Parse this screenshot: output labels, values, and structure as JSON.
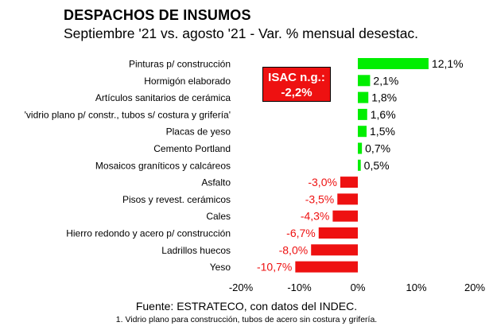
{
  "header": {
    "title": "DESPACHOS DE INSUMOS",
    "subtitle": "Septiembre '21 vs. agosto '21 - Var. % mensual desestac."
  },
  "callout": {
    "line1": "ISAC n.g.:",
    "line2": "-2,2%"
  },
  "footer": {
    "source": "Fuente: ESTRATECO, con datos del INDEC.",
    "note": "1. Vidrio plano para construcción, tubos de acero sin costura y grifería."
  },
  "colors": {
    "positive": "#00ee00",
    "negative": "#ee1111",
    "callout_bg": "#ee1111"
  },
  "chart_data": {
    "type": "bar",
    "orientation": "horizontal",
    "categories": [
      "Pinturas p/ construcción",
      "Hormigón elaborado",
      "Artículos sanitarios de cerámica",
      "'vidrio plano p/ constr., tubos s/ costura y grifería'",
      "Placas de yeso",
      "Cemento Portland",
      "Mosaicos graníticos y calcáreos",
      "Asfalto",
      "Pisos y revest. cerámicos",
      "Cales",
      "Hierro redondo y acero p/ construcción",
      "Ladrillos huecos",
      "Yeso"
    ],
    "values": [
      12.1,
      2.1,
      1.8,
      1.6,
      1.5,
      0.7,
      0.5,
      -3.0,
      -3.5,
      -4.3,
      -6.7,
      -8.0,
      -10.7
    ],
    "value_labels": [
      "12,1%",
      "2,1%",
      "1,8%",
      "1,6%",
      "1,5%",
      "0,7%",
      "0,5%",
      "-3,0%",
      "-3,5%",
      "-4,3%",
      "-6,7%",
      "-8,0%",
      "-10,7%"
    ],
    "xlim": [
      -20,
      20
    ],
    "xticks": [
      -20,
      -10,
      0,
      10,
      20
    ],
    "xtick_labels": [
      "-20%",
      "-10%",
      "0%",
      "10%",
      "20%"
    ],
    "grid": false,
    "title": "DESPACHOS DE INSUMOS",
    "subtitle": "Septiembre '21 vs. agosto '21 - Var. % mensual desestac."
  }
}
